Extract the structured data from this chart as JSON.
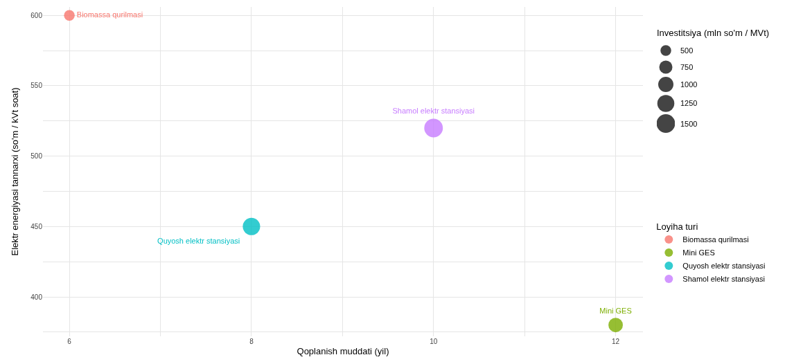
{
  "chart_data": {
    "type": "bubble",
    "xlabel": "Qoplanish muddati (yil)",
    "ylabel": "Elektr energiyasi tannarxi (so'm / kVt soat)",
    "legend_title": "Loyiha turi",
    "annotations": [
      "Investitsiya (mln so'm / MVt)"
    ],
    "series": [
      {
        "name": "Biomassa qurilmasi",
        "color": "#f8766d",
        "x": [
          6
        ],
        "values": [
          600
        ],
        "sizes": [
          500
        ]
      },
      {
        "name": "Mini GES",
        "color": "#7cae00",
        "x": [
          12
        ],
        "values": [
          380
        ],
        "sizes": [
          900
        ]
      },
      {
        "name": "Quyosh elektr stansiyasi",
        "color": "#00bfc4",
        "x": [
          8
        ],
        "values": [
          450
        ],
        "sizes": [
          1300
        ]
      },
      {
        "name": "Shamol elektr stansiyasi",
        "color": "#c77cff",
        "x": [
          10
        ],
        "values": [
          520
        ],
        "sizes": [
          1500
        ]
      }
    ],
    "size_legend": [
      500,
      750,
      1000,
      1250,
      1500
    ],
    "xlim": [
      5.71,
      12.3
    ],
    "xticks": [
      6,
      {
        "value": 7,
        "label": null
      },
      8,
      {
        "value": 9,
        "label": null
      },
      10,
      {
        "value": 11,
        "label": null
      },
      12
    ],
    "ylim": [
      372,
      606
    ],
    "yticks": [
      {
        "value": 375,
        "label": null
      },
      400,
      {
        "value": 425,
        "label": null
      },
      450,
      {
        "value": 475,
        "label": null
      },
      500,
      {
        "value": 525,
        "label": null
      },
      550,
      {
        "value": 575,
        "label": null
      },
      600
    ],
    "grid": true,
    "legend": "right",
    "marker": "circle"
  }
}
